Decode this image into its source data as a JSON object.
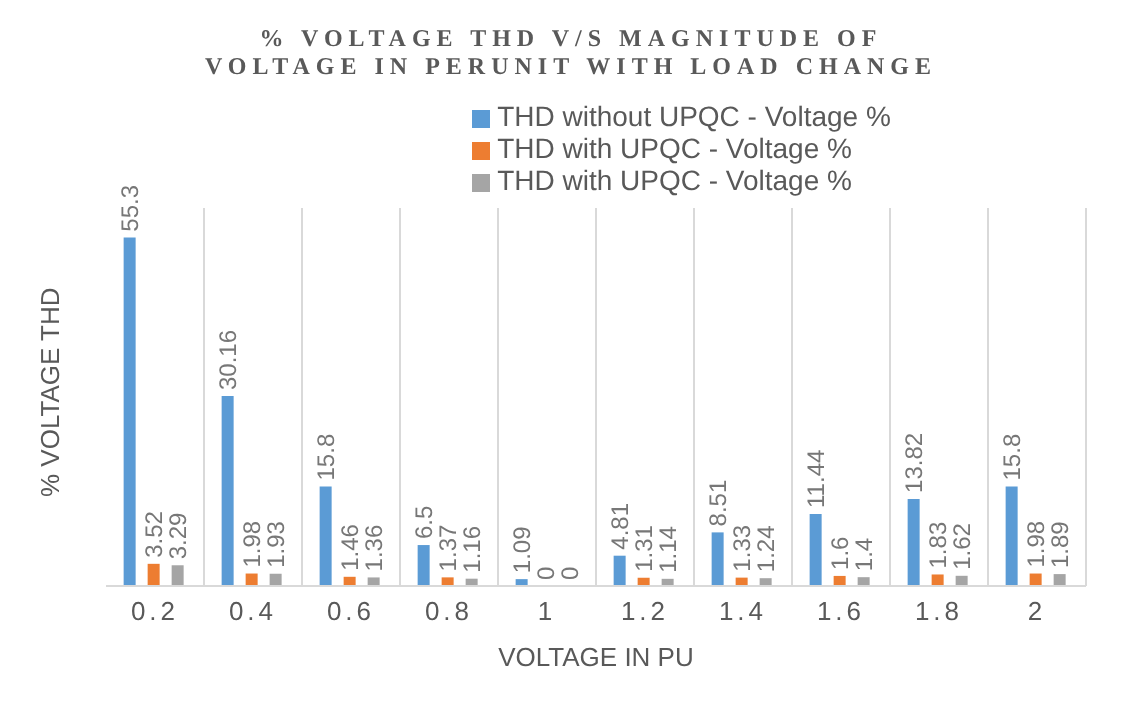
{
  "chart_data": {
    "type": "bar",
    "title": "% VOLTAGE THD V/S MAGNITUDE OF VOLTAGE IN PERUNIT WITH LOAD CHANGE",
    "xlabel": "VOLTAGE IN PU",
    "ylabel": "% VOLTAGE THD",
    "categories": [
      "0.2",
      "0.4",
      "0.6",
      "0.8",
      "1",
      "1.2",
      "1.4",
      "1.6",
      "1.8",
      "2"
    ],
    "series": [
      {
        "name": "THD without UPQC - Voltage %",
        "color": "#5b9bd5",
        "values": [
          55.3,
          30.16,
          15.8,
          6.5,
          1.09,
          4.81,
          8.51,
          11.44,
          13.82,
          15.8
        ]
      },
      {
        "name": "THD with UPQC - Voltage %",
        "color": "#ed7d31",
        "values": [
          3.52,
          1.98,
          1.46,
          1.37,
          0,
          1.31,
          1.33,
          1.6,
          1.83,
          1.98
        ]
      },
      {
        "name": "THD with UPQC - Voltage %",
        "color": "#a5a5a5",
        "values": [
          3.29,
          1.93,
          1.36,
          1.16,
          0,
          1.14,
          1.24,
          1.4,
          1.62,
          1.89
        ]
      }
    ],
    "ylim": [
      0,
      60
    ],
    "tick_labels": "x",
    "data_labels": true,
    "grid": "x",
    "legend": "top"
  }
}
